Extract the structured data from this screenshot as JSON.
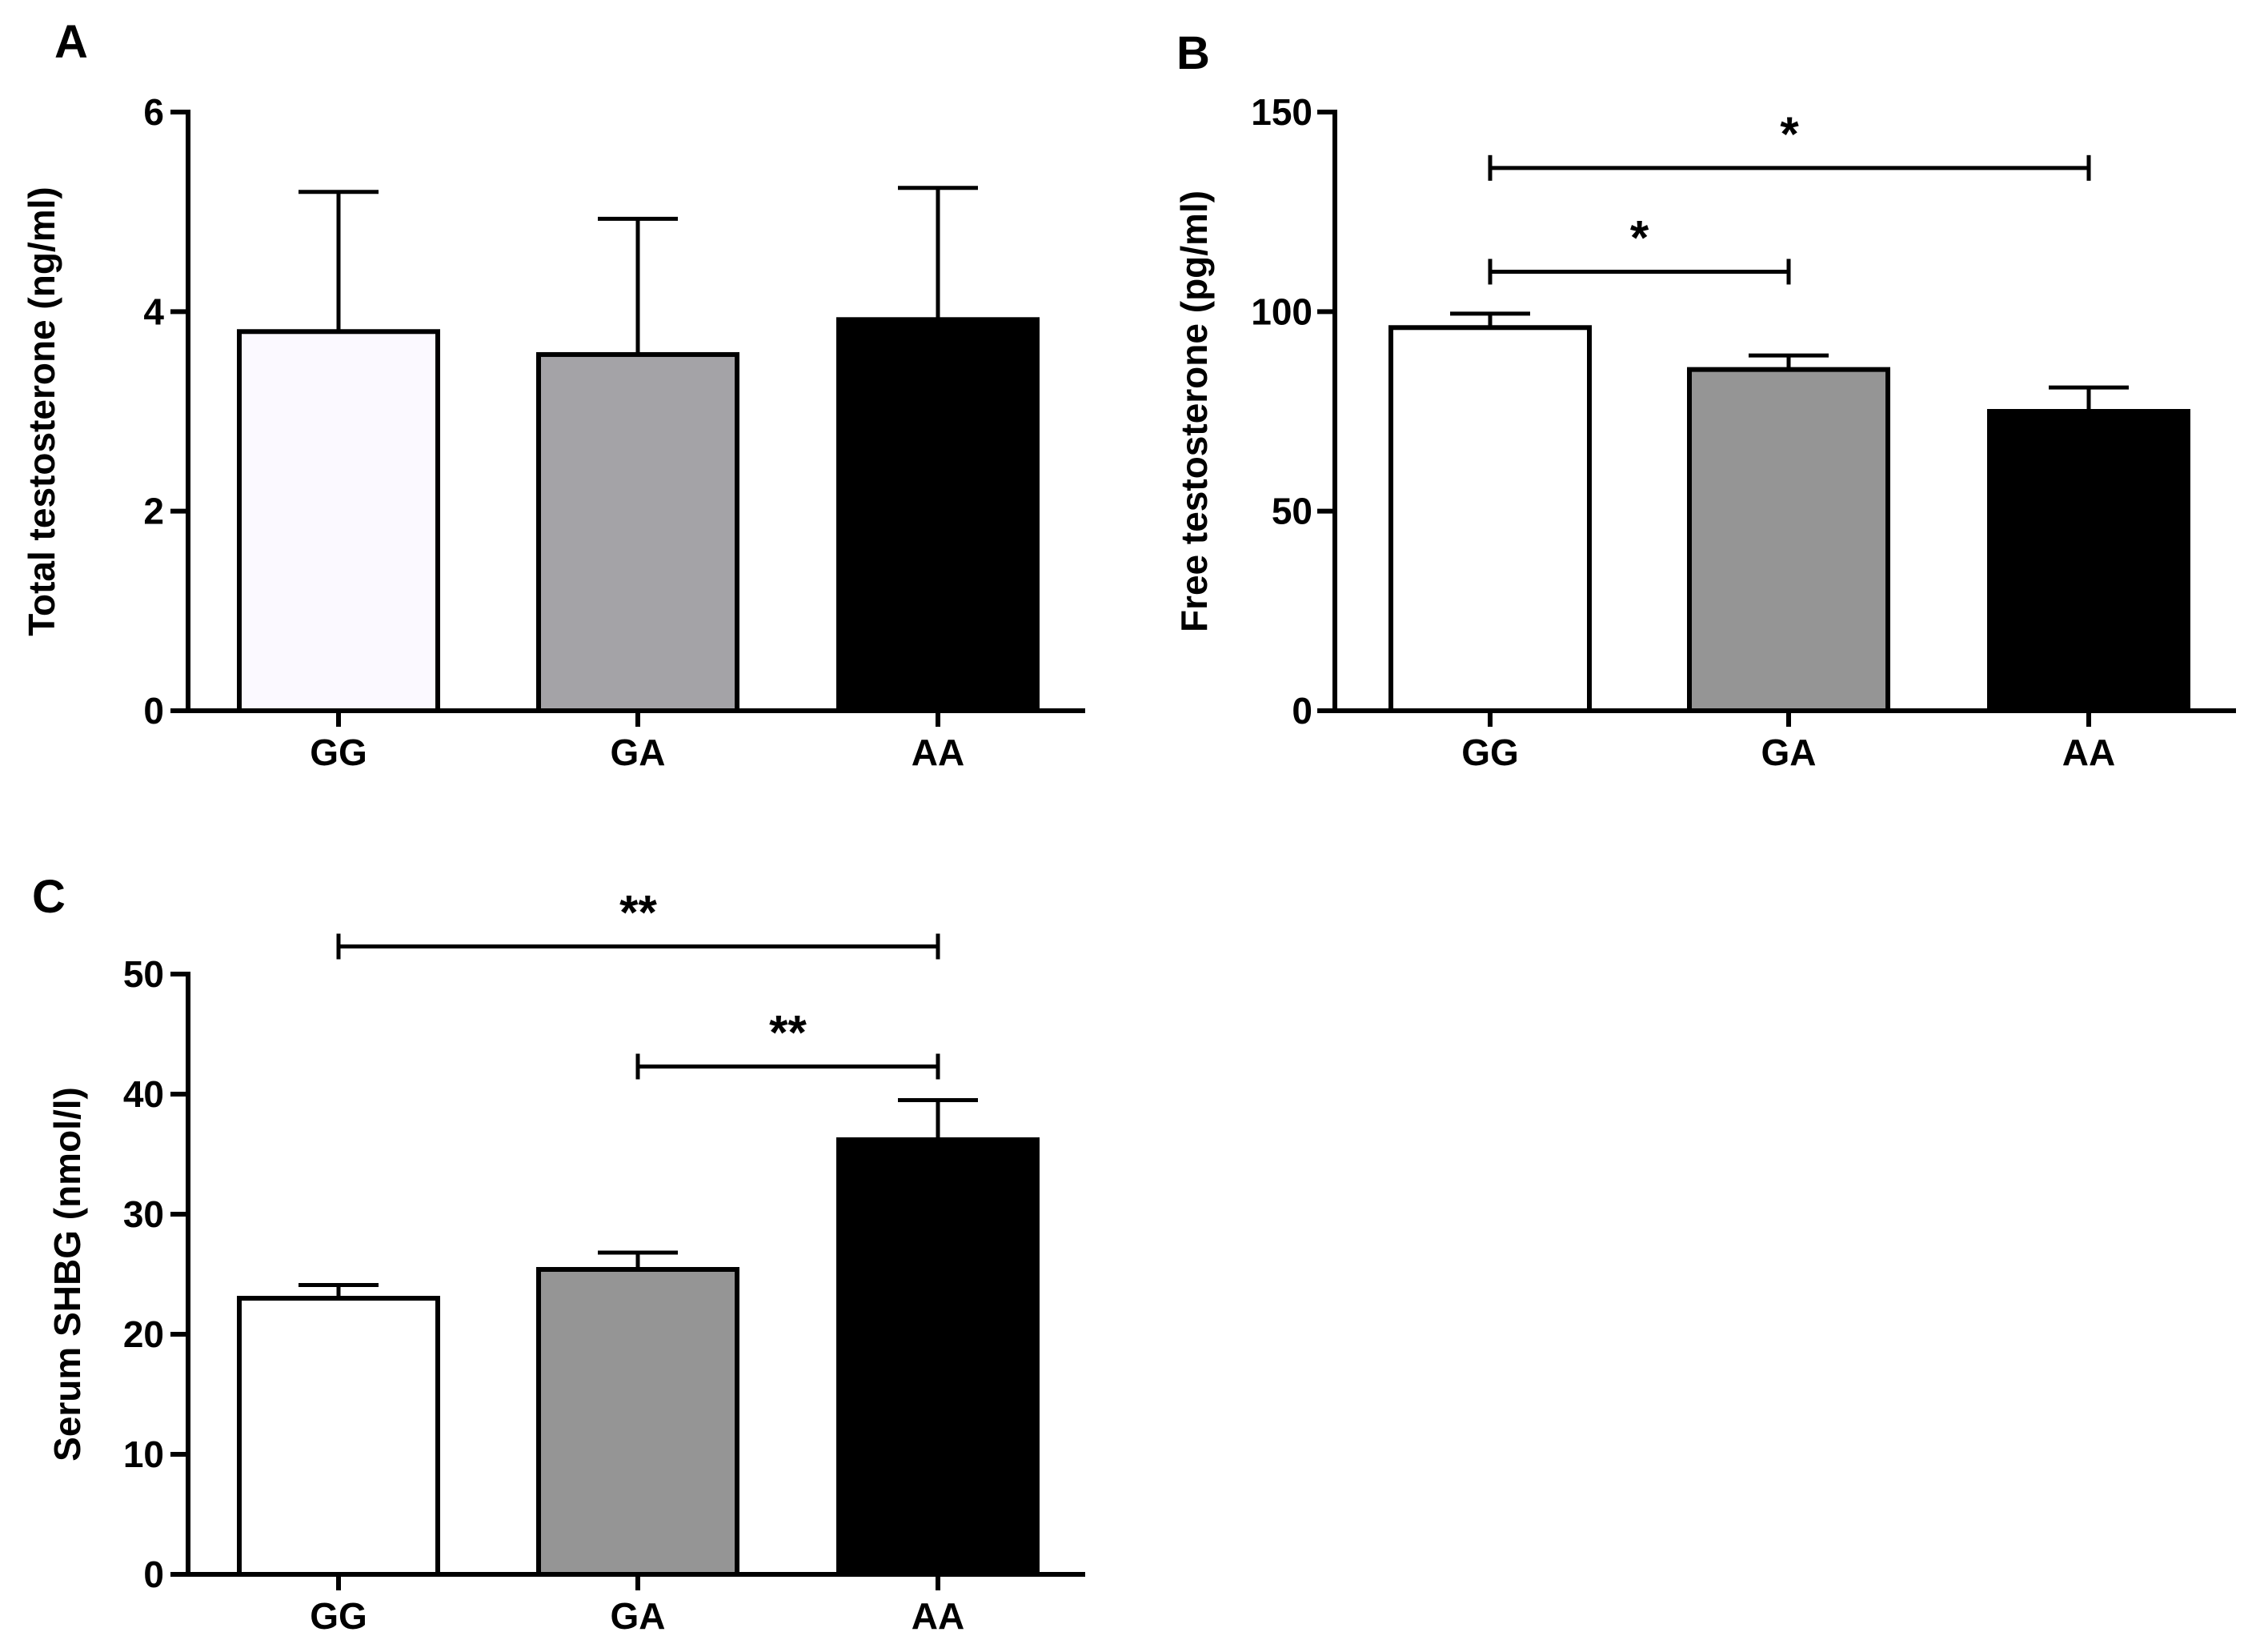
{
  "chart_data": [
    {
      "panel": "A",
      "type": "bar",
      "title": "",
      "xlabel": "",
      "ylabel": "Total testosterone (ng/ml)",
      "categories": [
        "GG",
        "GA",
        "AA"
      ],
      "values": [
        3.8,
        3.57,
        3.92
      ],
      "error_upper": [
        5.2,
        4.93,
        5.24
      ],
      "ylim": [
        0,
        6
      ],
      "yticks": [
        "0",
        "2",
        "4",
        "6"
      ],
      "bar_colors": [
        "#fbf9ff",
        "#a4a3a7",
        "#000000"
      ],
      "significance": []
    },
    {
      "panel": "B",
      "type": "bar",
      "title": "",
      "xlabel": "",
      "ylabel": "Free testosterone (pg/ml)",
      "categories": [
        "GG",
        "GA",
        "AA"
      ],
      "values": [
        96,
        85.5,
        75
      ],
      "error_upper": [
        99.5,
        89,
        81
      ],
      "ylim": [
        0,
        150
      ],
      "yticks": [
        "0",
        "50",
        "100",
        "150"
      ],
      "bar_colors": [
        "#ffffff",
        "#959595",
        "#000000"
      ],
      "significance": [
        {
          "from": 0,
          "to": 1,
          "label": "*",
          "y": 110
        },
        {
          "from": 0,
          "to": 2,
          "label": "*",
          "y": 136
        }
      ]
    },
    {
      "panel": "C",
      "type": "bar",
      "title": "",
      "xlabel": "",
      "ylabel": "Serum SHBG (nmol/l)",
      "categories": [
        "GG",
        "GA",
        "AA"
      ],
      "values": [
        23,
        25.4,
        36.2
      ],
      "error_upper": [
        24.1,
        26.8,
        39.5
      ],
      "ylim": [
        0,
        50
      ],
      "yticks": [
        "0",
        "10",
        "20",
        "30",
        "40",
        "50"
      ],
      "bar_colors": [
        "#ffffff",
        "#959595",
        "#000000"
      ],
      "significance": [
        {
          "from": 1,
          "to": 2,
          "label": "**",
          "y": 42.3
        },
        {
          "from": 0,
          "to": 2,
          "label": "**",
          "y": 52.3
        }
      ]
    }
  ]
}
